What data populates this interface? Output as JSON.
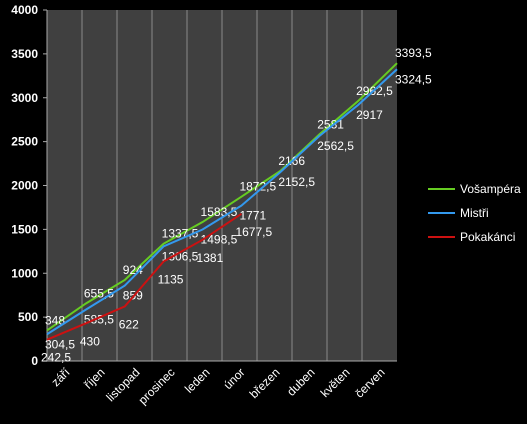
{
  "chart_data": {
    "type": "line",
    "categories": [
      "září",
      "říjen",
      "listopad",
      "prosinec",
      "leden",
      "únor",
      "březen",
      "duben",
      "květen",
      "červen"
    ],
    "series": [
      {
        "name": "Vošampéra",
        "color": "#66cc22",
        "values": [
          348,
          655.5,
          924,
          1337.5,
          1583.5,
          1872.5,
          2166,
          2581,
          2962.5,
          3393.5
        ],
        "value_labels": [
          "348",
          "655,5",
          "924",
          "1337,5",
          "1583,5",
          "1872,5",
          "2166",
          "2581",
          "2962,5",
          "3393,5"
        ]
      },
      {
        "name": "Mistři",
        "color": "#3399ee",
        "values": [
          304.5,
          585.5,
          859,
          1306.5,
          1498.5,
          1771,
          2152.5,
          2562.5,
          2917,
          3324.5
        ],
        "value_labels": [
          "304,5",
          "585,5",
          "859",
          "1306,5",
          "1498,5",
          "1771",
          "2152,5",
          "2562,5",
          "2917",
          "3324,5"
        ]
      },
      {
        "name": "Pokakánci",
        "color": "#cc1111",
        "values": [
          242.5,
          430,
          622,
          1135,
          1381,
          1677.5,
          null,
          null,
          null,
          null
        ],
        "value_labels": [
          "242,5",
          "430",
          "622",
          "1135",
          "1381",
          "1677,5",
          null,
          null,
          null,
          null
        ]
      }
    ],
    "ylim": [
      0,
      4000
    ],
    "yticks": [
      0,
      500,
      1000,
      1500,
      2000,
      2500,
      3000,
      3500,
      4000
    ],
    "grid": true,
    "legend": "right"
  }
}
